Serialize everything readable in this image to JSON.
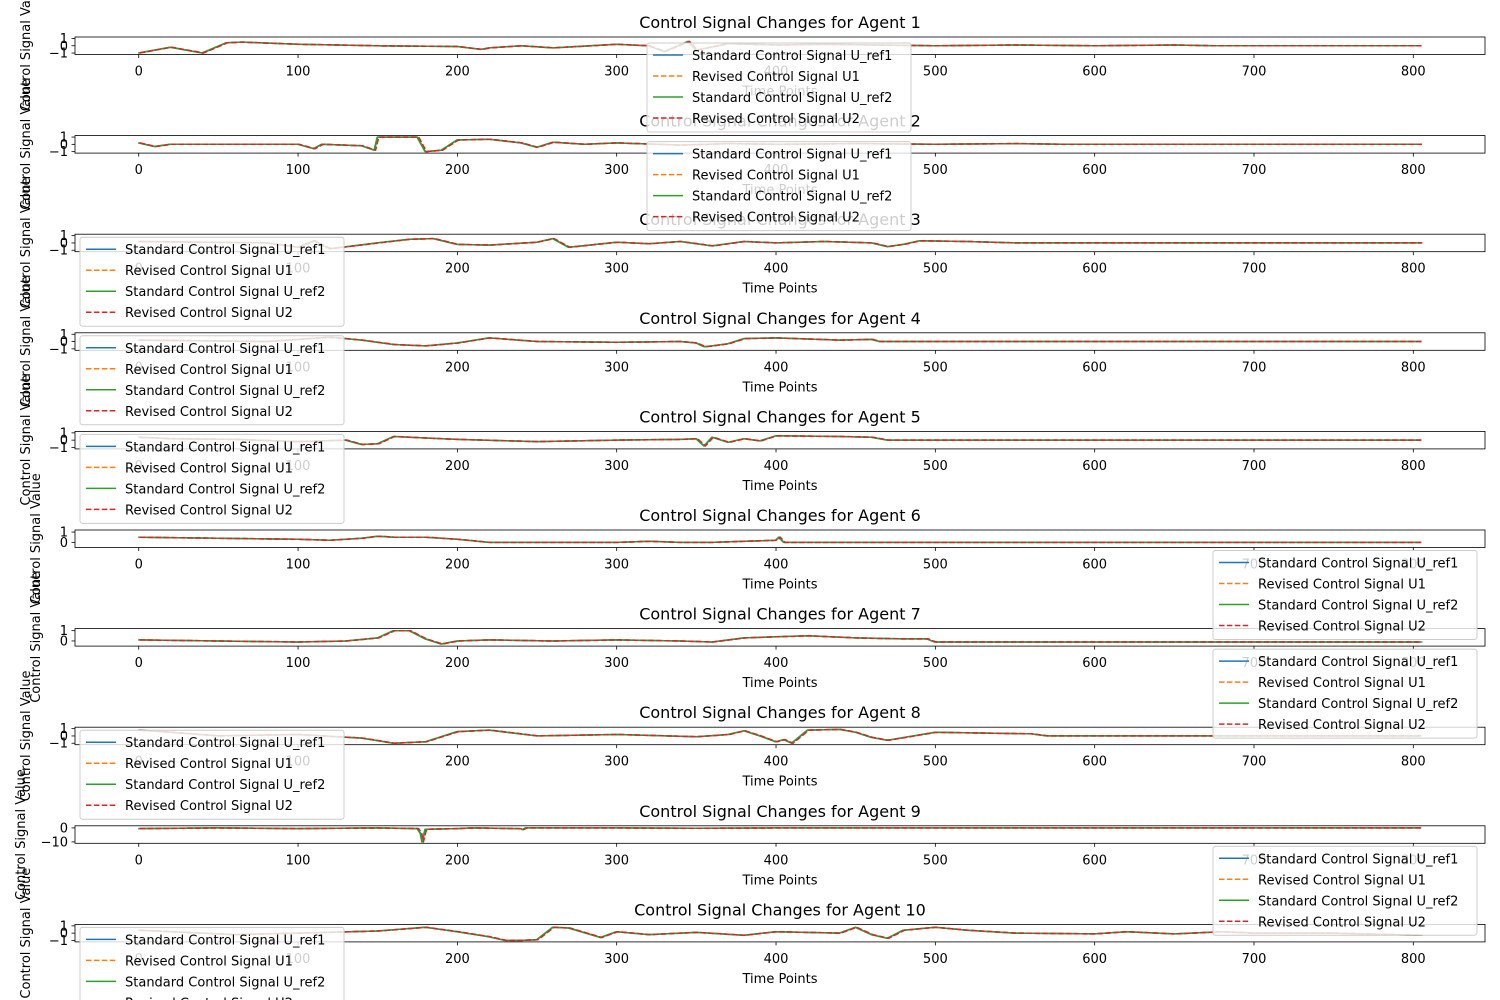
{
  "chart_data": {
    "type": "line",
    "xlabel": "Time Points",
    "ylabel": "Control Signal Value",
    "xlim": [
      -40,
      845
    ],
    "x_ticks": [
      0,
      100,
      200,
      300,
      400,
      500,
      600,
      700,
      800
    ],
    "series_styles": [
      {
        "name": "Standard Control Signal U_ref1",
        "color": "#1f77b4",
        "dash": "solid"
      },
      {
        "name": "Revised Control Signal U1",
        "color": "#ff7f0e",
        "dash": "dashed"
      },
      {
        "name": "Standard Control Signal U_ref2",
        "color": "#2ca02c",
        "dash": "solid"
      },
      {
        "name": "Revised Control Signal U2",
        "color": "#d62728",
        "dash": "dashed"
      }
    ],
    "panels": [
      {
        "title": "Control Signal Changes for Agent 1",
        "ylim": [
          -1.2,
          1.2
        ],
        "yticks": [
          -1,
          0,
          1
        ],
        "legend": "top-center",
        "x": [
          0,
          20,
          40,
          55,
          65,
          100,
          150,
          200,
          215,
          220,
          240,
          260,
          300,
          320,
          330,
          345,
          350,
          370,
          400,
          430,
          500,
          550,
          600,
          650,
          675,
          680,
          700,
          805
        ],
        "values": [
          -1.0,
          -0.2,
          -1.0,
          0.4,
          0.5,
          0.2,
          0.0,
          -0.1,
          -0.5,
          -0.3,
          0.0,
          -0.3,
          0.2,
          0.0,
          -0.8,
          0.6,
          -0.6,
          0.3,
          0.1,
          0.2,
          0.0,
          0.1,
          0.0,
          0.1,
          0.0,
          0.0,
          0.0,
          0.0
        ]
      },
      {
        "title": "Control Signal Changes for Agent 2",
        "ylim": [
          -1.2,
          1.2
        ],
        "yticks": [
          -1,
          0,
          1
        ],
        "legend": "top-center",
        "x": [
          0,
          10,
          20,
          60,
          100,
          110,
          115,
          140,
          148,
          150,
          175,
          180,
          190,
          200,
          220,
          240,
          250,
          260,
          280,
          300,
          340,
          370,
          400,
          450,
          500,
          550,
          580,
          600,
          700,
          805
        ],
        "values": [
          0.2,
          -0.3,
          0.0,
          0.0,
          0.0,
          -0.6,
          0.0,
          -0.2,
          -0.8,
          1.0,
          1.0,
          -1.0,
          -0.8,
          0.6,
          0.7,
          0.2,
          -0.4,
          0.3,
          0.0,
          0.2,
          -0.1,
          0.1,
          0.0,
          0.1,
          0.0,
          0.1,
          0.0,
          0.0,
          0.0,
          0.0
        ]
      },
      {
        "title": "Control Signal Changes for Agent 3",
        "ylim": [
          -1.2,
          1.2
        ],
        "yticks": [
          -1,
          0,
          1
        ],
        "legend": "top-left",
        "x": [
          0,
          80,
          100,
          110,
          120,
          150,
          170,
          185,
          200,
          220,
          250,
          260,
          270,
          300,
          320,
          340,
          360,
          380,
          400,
          430,
          460,
          470,
          480,
          490,
          520,
          550,
          600,
          700,
          805
        ],
        "values": [
          0.2,
          0.0,
          -0.6,
          0.3,
          -0.8,
          0.0,
          0.5,
          0.6,
          -0.2,
          -0.3,
          0.1,
          0.6,
          -0.6,
          0.1,
          -0.1,
          0.2,
          -0.4,
          0.2,
          0.0,
          0.2,
          0.0,
          -0.5,
          -0.2,
          0.3,
          0.2,
          0.0,
          0.0,
          0.0,
          0.0
        ]
      },
      {
        "title": "Control Signal Changes for Agent 4",
        "ylim": [
          -1.2,
          1.2
        ],
        "yticks": [
          -1,
          0,
          1
        ],
        "legend": "top-left",
        "x": [
          0,
          80,
          100,
          120,
          140,
          160,
          180,
          200,
          220,
          250,
          300,
          340,
          350,
          355,
          360,
          370,
          380,
          400,
          440,
          460,
          465,
          500,
          600,
          700,
          805
        ],
        "values": [
          0.2,
          0.0,
          0.3,
          0.6,
          0.2,
          -0.4,
          -0.6,
          -0.2,
          0.5,
          0.0,
          -0.1,
          0.0,
          -0.2,
          -0.7,
          -0.6,
          -0.3,
          0.4,
          0.5,
          0.2,
          0.3,
          0.0,
          0.0,
          0.0,
          0.0,
          0.0
        ]
      },
      {
        "title": "Control Signal Changes for Agent 5",
        "ylim": [
          -1.2,
          1.2
        ],
        "yticks": [
          -1,
          0,
          1
        ],
        "legend": "top-left",
        "x": [
          0,
          20,
          60,
          100,
          130,
          140,
          150,
          160,
          180,
          200,
          250,
          300,
          340,
          350,
          355,
          360,
          370,
          380,
          390,
          400,
          440,
          460,
          470,
          500,
          600,
          700,
          805
        ],
        "values": [
          0.4,
          0.2,
          0.1,
          -0.2,
          0.0,
          -0.6,
          -0.5,
          0.5,
          0.3,
          0.1,
          -0.2,
          0.0,
          0.1,
          0.2,
          -0.8,
          0.4,
          -0.3,
          0.2,
          -0.1,
          0.6,
          0.5,
          0.4,
          0.0,
          0.0,
          0.0,
          0.0,
          0.0
        ]
      },
      {
        "title": "Control Signal Changes for Agent 6",
        "ylim": [
          -0.5,
          1.2
        ],
        "yticks": [
          0,
          1
        ],
        "legend": "bottom-right",
        "x": [
          0,
          100,
          120,
          140,
          150,
          160,
          180,
          200,
          220,
          300,
          320,
          340,
          360,
          380,
          400,
          402,
          405,
          410,
          500,
          600,
          700,
          805
        ],
        "values": [
          0.5,
          0.3,
          0.2,
          0.4,
          0.6,
          0.5,
          0.5,
          0.3,
          0.0,
          0.0,
          0.1,
          0.0,
          0.0,
          0.1,
          0.2,
          0.5,
          0.0,
          0.0,
          0.0,
          0.0,
          0.0,
          0.0
        ]
      },
      {
        "title": "Control Signal Changes for Agent 7",
        "ylim": [
          -0.5,
          1.2
        ],
        "yticks": [
          0,
          1
        ],
        "legend": "bottom-right",
        "x": [
          0,
          50,
          100,
          130,
          150,
          160,
          170,
          180,
          190,
          200,
          220,
          260,
          300,
          340,
          360,
          380,
          400,
          420,
          450,
          480,
          495,
          498,
          500,
          600,
          700,
          805
        ],
        "values": [
          0.1,
          0.0,
          -0.1,
          0.0,
          0.3,
          1.0,
          1.0,
          0.2,
          -0.3,
          0.0,
          0.1,
          0.0,
          0.1,
          0.0,
          -0.1,
          0.3,
          0.4,
          0.5,
          0.3,
          0.2,
          0.2,
          0.0,
          -0.1,
          -0.1,
          -0.1,
          -0.1
        ]
      },
      {
        "title": "Control Signal Changes for Agent 8",
        "ylim": [
          -1.2,
          1.2
        ],
        "yticks": [
          -1,
          0,
          1
        ],
        "legend": "top-left",
        "x": [
          0,
          20,
          50,
          100,
          140,
          160,
          180,
          200,
          220,
          250,
          300,
          350,
          370,
          380,
          390,
          400,
          405,
          410,
          420,
          440,
          450,
          460,
          470,
          500,
          560,
          570,
          600,
          700,
          805
        ],
        "values": [
          0.8,
          0.5,
          0.0,
          0.2,
          -0.3,
          -1.0,
          -0.8,
          0.6,
          0.8,
          0.0,
          0.2,
          -0.1,
          0.2,
          0.7,
          0.0,
          -0.8,
          -0.5,
          -1.0,
          0.8,
          0.9,
          0.5,
          -0.2,
          -0.6,
          0.5,
          0.3,
          0.0,
          0.0,
          0.0,
          0.0
        ]
      },
      {
        "title": "Control Signal Changes for Agent 9",
        "ylim": [
          -11,
          1.5
        ],
        "yticks": [
          -10,
          0
        ],
        "legend": "bottom-right",
        "x": [
          0,
          50,
          100,
          150,
          175,
          177,
          178,
          180,
          200,
          210,
          240,
          241,
          243,
          300,
          350,
          400,
          450,
          500,
          600,
          700,
          805
        ],
        "values": [
          -0.5,
          0.0,
          -0.5,
          0.0,
          -0.5,
          -4.0,
          -10.0,
          -1.0,
          -0.5,
          0.0,
          -0.6,
          -1.2,
          0.0,
          0.0,
          -0.3,
          0.0,
          0.0,
          0.0,
          0.0,
          0.0,
          0.0
        ]
      },
      {
        "title": "Control Signal Changes for Agent 10",
        "ylim": [
          -1.2,
          1.2
        ],
        "yticks": [
          -1,
          0,
          1
        ],
        "legend": "top-left",
        "x": [
          0,
          60,
          100,
          150,
          180,
          200,
          220,
          230,
          240,
          250,
          260,
          270,
          290,
          300,
          320,
          350,
          380,
          400,
          440,
          450,
          460,
          470,
          480,
          500,
          520,
          550,
          600,
          620,
          650,
          680,
          700,
          750,
          805
        ],
        "values": [
          0.4,
          -0.2,
          0.0,
          0.3,
          0.8,
          0.2,
          -0.5,
          -1.0,
          -1.0,
          -0.9,
          0.8,
          0.7,
          -0.6,
          0.2,
          -0.2,
          0.1,
          -0.3,
          0.2,
          0.0,
          0.8,
          -0.2,
          -0.7,
          0.4,
          0.8,
          0.4,
          0.0,
          -0.1,
          0.2,
          -0.1,
          0.2,
          0.0,
          0.0,
          -0.3
        ]
      }
    ]
  }
}
